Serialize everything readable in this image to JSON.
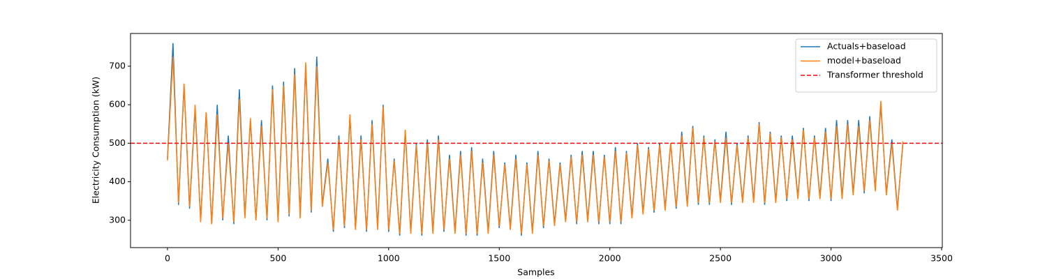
{
  "chart_data": {
    "type": "line",
    "xlabel": "Samples",
    "ylabel": "Electricity Consumption (kW)",
    "xlim": [
      -167,
      3503
    ],
    "ylim": [
      229,
      785
    ],
    "xticks": [
      0,
      500,
      1000,
      1500,
      2000,
      2500,
      3000,
      3500
    ],
    "yticks": [
      300,
      400,
      500,
      600,
      700
    ],
    "legend": "upper right",
    "x": [
      0,
      25,
      50,
      75,
      100,
      125,
      150,
      175,
      200,
      225,
      250,
      275,
      300,
      325,
      350,
      375,
      400,
      425,
      450,
      475,
      500,
      525,
      550,
      575,
      600,
      625,
      650,
      675,
      700,
      725,
      750,
      775,
      800,
      825,
      850,
      875,
      900,
      925,
      950,
      975,
      1000,
      1025,
      1050,
      1075,
      1100,
      1125,
      1150,
      1175,
      1200,
      1225,
      1250,
      1275,
      1300,
      1325,
      1350,
      1375,
      1400,
      1425,
      1450,
      1475,
      1500,
      1525,
      1550,
      1575,
      1600,
      1625,
      1650,
      1675,
      1700,
      1725,
      1750,
      1775,
      1800,
      1825,
      1850,
      1875,
      1900,
      1925,
      1950,
      1975,
      2000,
      2025,
      2050,
      2075,
      2100,
      2125,
      2150,
      2175,
      2200,
      2225,
      2250,
      2275,
      2300,
      2325,
      2350,
      2375,
      2400,
      2425,
      2450,
      2475,
      2500,
      2525,
      2550,
      2575,
      2600,
      2625,
      2650,
      2675,
      2700,
      2725,
      2750,
      2775,
      2800,
      2825,
      2850,
      2875,
      2900,
      2925,
      2950,
      2975,
      3000,
      3025,
      3050,
      3075,
      3100,
      3125,
      3150,
      3175,
      3200,
      3225,
      3250,
      3275,
      3300,
      3325
    ],
    "series": [
      {
        "name": "Actuals+baseload",
        "color": "#1f77b4",
        "values": [
          460,
          760,
          340,
          650,
          330,
          590,
          300,
          580,
          290,
          600,
          300,
          520,
          290,
          640,
          310,
          560,
          300,
          560,
          300,
          650,
          300,
          660,
          310,
          695,
          310,
          700,
          320,
          725,
          340,
          460,
          270,
          520,
          280,
          570,
          280,
          520,
          270,
          560,
          280,
          600,
          270,
          460,
          260,
          530,
          270,
          500,
          260,
          510,
          270,
          520,
          270,
          470,
          270,
          480,
          260,
          490,
          260,
          460,
          270,
          480,
          280,
          450,
          280,
          470,
          260,
          450,
          270,
          480,
          280,
          460,
          290,
          450,
          300,
          470,
          290,
          480,
          300,
          480,
          290,
          470,
          290,
          490,
          290,
          480,
          310,
          500,
          320,
          490,
          320,
          500,
          330,
          500,
          330,
          530,
          340,
          545,
          340,
          520,
          340,
          510,
          350,
          530,
          340,
          500,
          350,
          520,
          350,
          555,
          340,
          530,
          350,
          520,
          350,
          520,
          360,
          540,
          350,
          520,
          360,
          540,
          350,
          560,
          360,
          560,
          370,
          560,
          370,
          570,
          380,
          600,
          370,
          510,
          330,
          500
        ]
      },
      {
        "name": "model+baseload",
        "color": "#ff7f0e",
        "values": [
          455,
          725,
          345,
          655,
          335,
          600,
          295,
          580,
          290,
          575,
          305,
          500,
          295,
          615,
          305,
          565,
          300,
          545,
          305,
          640,
          295,
          650,
          315,
          680,
          305,
          710,
          325,
          700,
          335,
          450,
          275,
          510,
          285,
          575,
          275,
          510,
          275,
          550,
          275,
          595,
          275,
          455,
          265,
          535,
          265,
          495,
          265,
          500,
          265,
          510,
          275,
          460,
          265,
          470,
          265,
          480,
          265,
          450,
          265,
          470,
          285,
          445,
          275,
          460,
          265,
          445,
          265,
          470,
          285,
          455,
          285,
          445,
          295,
          465,
          295,
          470,
          295,
          470,
          295,
          465,
          295,
          480,
          295,
          475,
          305,
          495,
          315,
          485,
          325,
          495,
          325,
          500,
          335,
          520,
          335,
          540,
          345,
          515,
          345,
          505,
          345,
          515,
          345,
          495,
          345,
          515,
          345,
          550,
          345,
          525,
          345,
          515,
          355,
          510,
          355,
          535,
          355,
          515,
          355,
          530,
          355,
          545,
          355,
          550,
          365,
          545,
          375,
          560,
          375,
          610,
          365,
          500,
          325,
          505
        ]
      },
      {
        "name": "Transformer threshold",
        "color": "#ff0000",
        "y": 500,
        "linestyle": "dashed"
      }
    ]
  }
}
